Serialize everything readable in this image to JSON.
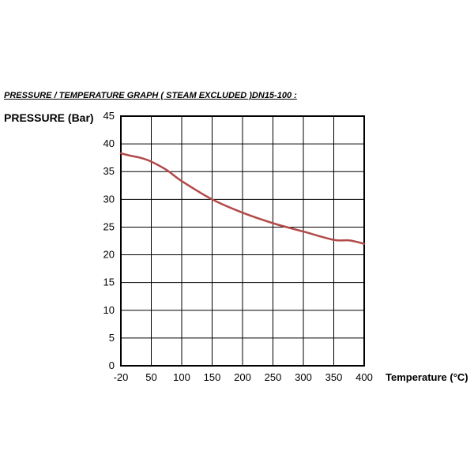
{
  "chart_data": {
    "type": "line",
    "title": "PRESSURE / TEMPERATURE GRAPH ( STEAM EXCLUDED )DN15-100 :",
    "ylabel": "PRESSURE (Bar)",
    "xlabel": "Temperature (°C)",
    "x_ticks": [
      "-20",
      "50",
      "100",
      "150",
      "200",
      "250",
      "300",
      "350",
      "400"
    ],
    "y_ticks": [
      "0",
      "5",
      "10",
      "15",
      "20",
      "25",
      "30",
      "35",
      "40",
      "45"
    ],
    "ylim": [
      0,
      45
    ],
    "grid": true,
    "series": [
      {
        "color": "#b34a4a",
        "x": [
          -20,
          0,
          25,
          50,
          75,
          100,
          150,
          200,
          250,
          300,
          350,
          375,
          400
        ],
        "y": [
          38.3,
          37.9,
          37.5,
          36.8,
          35.3,
          33.3,
          30.0,
          27.6,
          25.7,
          24.2,
          22.7,
          22.6,
          22.0
        ]
      }
    ]
  }
}
